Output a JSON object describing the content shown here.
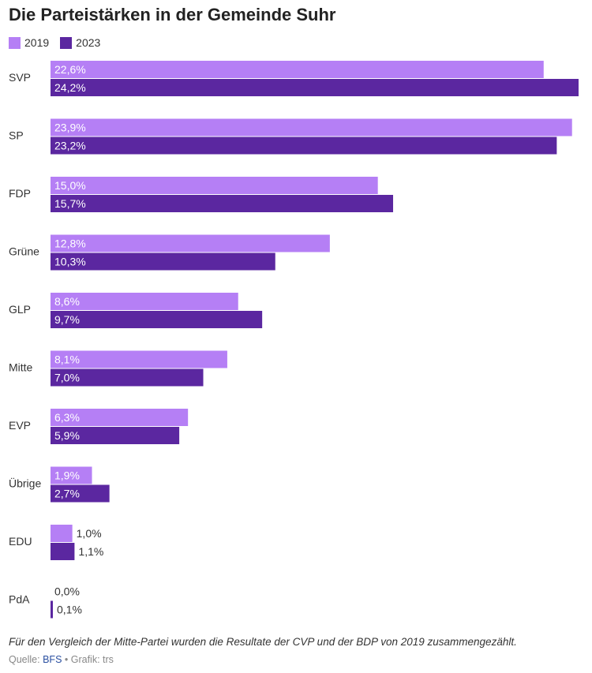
{
  "header": {
    "title": "Die Parteistärken in der Gemeinde Suhr"
  },
  "chart_data": {
    "type": "bar",
    "orientation": "horizontal",
    "title": "Die Parteistärken in der Gemeinde Suhr",
    "xlim": [
      0,
      24.2
    ],
    "grid": false,
    "legend_position": "top-left",
    "categories": [
      "SVP",
      "SP",
      "FDP",
      "Grüne",
      "GLP",
      "Mitte",
      "EVP",
      "Übrige",
      "EDU",
      "PdA"
    ],
    "series": [
      {
        "name": "2019",
        "color": "#b57ff5",
        "values": [
          22.6,
          23.9,
          15.0,
          12.8,
          8.6,
          8.1,
          6.3,
          1.9,
          1.0,
          0.0
        ],
        "labels": [
          "22,6%",
          "23,9%",
          "15,0%",
          "12,8%",
          "8,6%",
          "8,1%",
          "6,3%",
          "1,9%",
          "1,0%",
          "0,0%"
        ]
      },
      {
        "name": "2023",
        "color": "#5b27a0",
        "values": [
          24.2,
          23.2,
          15.7,
          10.3,
          9.7,
          7.0,
          5.9,
          2.7,
          1.1,
          0.1
        ],
        "labels": [
          "24,2%",
          "23,2%",
          "15,7%",
          "10,3%",
          "9,7%",
          "7,0%",
          "5,9%",
          "2,7%",
          "1,1%",
          "0,1%"
        ]
      }
    ]
  },
  "footer": {
    "note": "Für den Vergleich der Mitte-Partei wurden die Resultate der CVP und der BDP von 2019 zusammengezählt.",
    "source_prefix": "Quelle: ",
    "source_link": "BFS",
    "credit": " • Grafik: trs"
  }
}
